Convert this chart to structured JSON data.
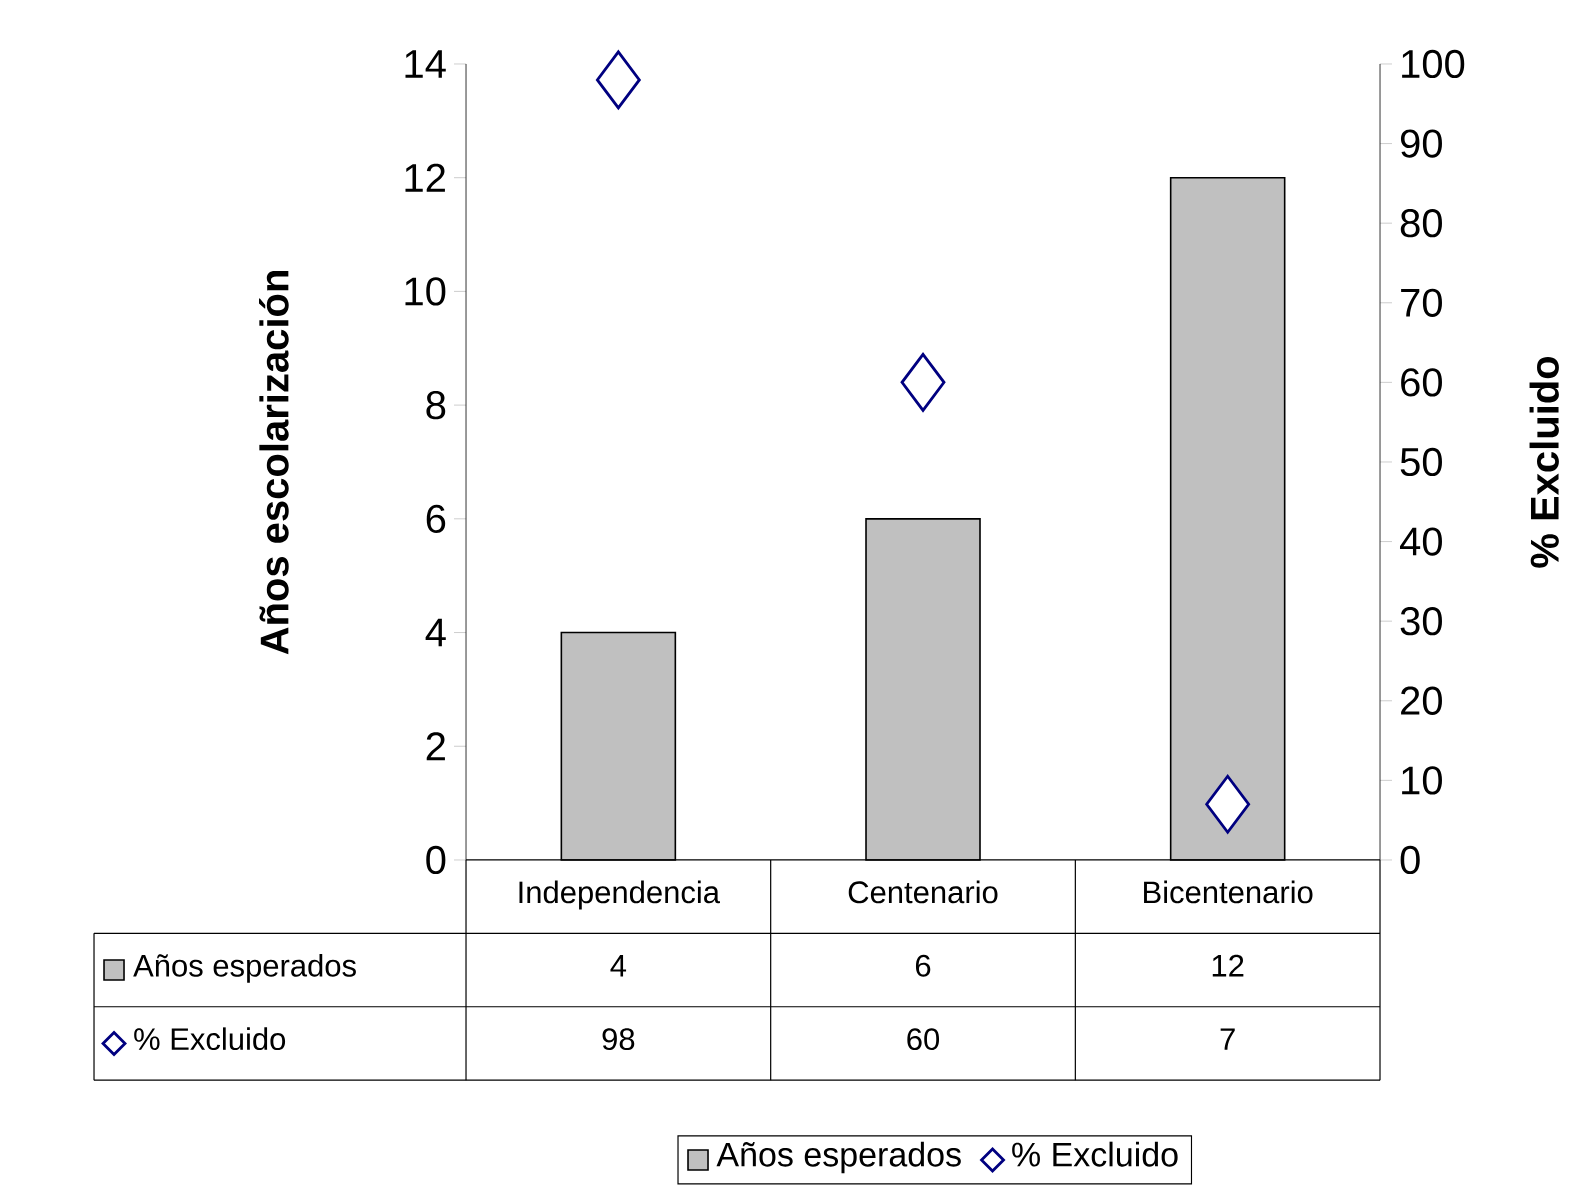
{
  "chart_data": {
    "type": "bar",
    "categories": [
      "Independencia",
      "Centenario",
      "Bicentenario"
    ],
    "series": [
      {
        "name": "Años esperados",
        "color": "#c0c0c0",
        "values": [
          4,
          6,
          12
        ]
      },
      {
        "name": "% Excluido",
        "type": "scatter",
        "axis": "y2",
        "marker": "diamond",
        "color": "#000080",
        "values": [
          98,
          60,
          7
        ]
      }
    ],
    "ylabel": "Años escolarización",
    "y2label": "% Excluido",
    "ylim": [
      0,
      14
    ],
    "yticks": [
      0,
      2,
      4,
      6,
      8,
      10,
      12,
      14
    ],
    "y2lim": [
      0,
      100
    ],
    "y2ticks": [
      0,
      10,
      20,
      30,
      40,
      50,
      60,
      70,
      80,
      90,
      100
    ],
    "data_labels": true,
    "legend": "bottom",
    "grid": false
  }
}
